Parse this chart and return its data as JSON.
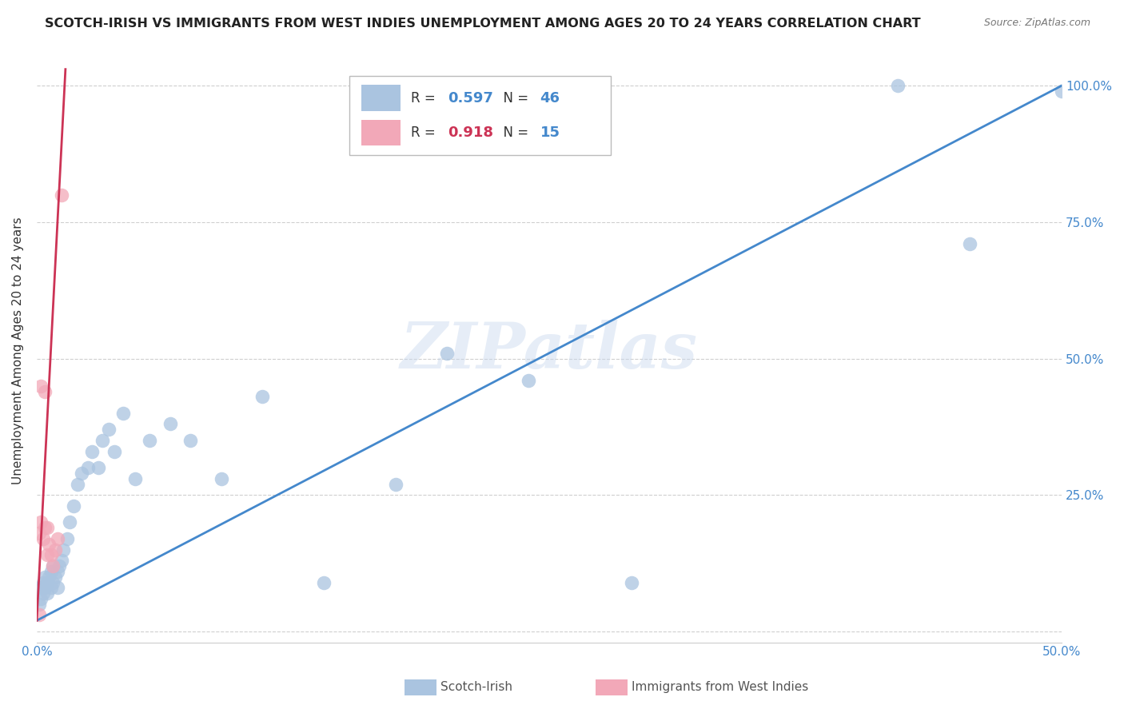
{
  "title": "SCOTCH-IRISH VS IMMIGRANTS FROM WEST INDIES UNEMPLOYMENT AMONG AGES 20 TO 24 YEARS CORRELATION CHART",
  "source": "Source: ZipAtlas.com",
  "ylabel": "Unemployment Among Ages 20 to 24 years",
  "xmin": 0.0,
  "xmax": 0.5,
  "ymin": -0.02,
  "ymax": 1.05,
  "blue_color": "#aac4e0",
  "pink_color": "#f2a8b8",
  "blue_line_color": "#4488cc",
  "pink_line_color": "#cc3355",
  "legend_R_blue": "0.597",
  "legend_N_blue": "46",
  "legend_R_pink": "0.918",
  "legend_N_pink": "15",
  "watermark": "ZIPatlas",
  "label_blue": "Scotch-Irish",
  "label_pink": "Immigrants from West Indies",
  "blue_scatter_x": [
    0.001,
    0.002,
    0.002,
    0.003,
    0.003,
    0.004,
    0.004,
    0.005,
    0.005,
    0.006,
    0.007,
    0.007,
    0.008,
    0.008,
    0.009,
    0.01,
    0.01,
    0.011,
    0.012,
    0.013,
    0.015,
    0.016,
    0.018,
    0.02,
    0.022,
    0.025,
    0.027,
    0.03,
    0.032,
    0.035,
    0.038,
    0.042,
    0.048,
    0.055,
    0.065,
    0.075,
    0.09,
    0.11,
    0.14,
    0.175,
    0.2,
    0.24,
    0.29,
    0.42,
    0.455,
    0.5
  ],
  "blue_scatter_y": [
    0.05,
    0.06,
    0.08,
    0.07,
    0.09,
    0.08,
    0.1,
    0.07,
    0.09,
    0.1,
    0.08,
    0.11,
    0.09,
    0.12,
    0.1,
    0.08,
    0.11,
    0.12,
    0.13,
    0.15,
    0.17,
    0.2,
    0.23,
    0.27,
    0.29,
    0.3,
    0.33,
    0.3,
    0.35,
    0.37,
    0.33,
    0.4,
    0.28,
    0.35,
    0.38,
    0.35,
    0.28,
    0.43,
    0.09,
    0.27,
    0.51,
    0.46,
    0.09,
    1.0,
    0.71,
    0.99
  ],
  "pink_scatter_x": [
    0.001,
    0.001,
    0.002,
    0.002,
    0.003,
    0.004,
    0.004,
    0.005,
    0.005,
    0.006,
    0.007,
    0.008,
    0.009,
    0.01,
    0.012
  ],
  "pink_scatter_y": [
    0.03,
    0.18,
    0.2,
    0.45,
    0.17,
    0.19,
    0.44,
    0.14,
    0.19,
    0.16,
    0.14,
    0.12,
    0.15,
    0.17,
    0.8
  ],
  "blue_regline_x": [
    0.0,
    0.5
  ],
  "blue_regline_y": [
    0.02,
    1.0
  ],
  "pink_regline_x": [
    0.0,
    0.014
  ],
  "pink_regline_y": [
    0.02,
    1.03
  ]
}
